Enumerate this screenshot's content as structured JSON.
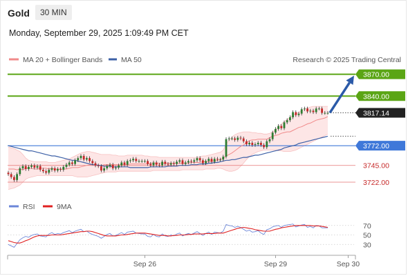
{
  "header": {
    "symbol": "Gold",
    "timeframe": "30 MIN",
    "datetime": "Monday, September 29, 2025 1:09:49 PM CET"
  },
  "legend": {
    "ma20_label": "MA 20 + Bollinger Bands",
    "ma50_label": "MA 50",
    "source": "Research © 2025 Trading Central",
    "rsi_label": "RSI",
    "rsi_ma_label": "9MA"
  },
  "colors": {
    "bull": "#2e7d32",
    "bear": "#c62828",
    "ma20": "#f08a8a",
    "ma50": "#3b5fa6",
    "band_fill": "#fde3e3",
    "resistance": "#5aa514",
    "pivot": "#3f78d9",
    "support": "#e57373",
    "last": "#222222",
    "rsi": "#6b86d8",
    "rsi_ma": "#e02020"
  },
  "chart_data": [
    {
      "type": "candlestick",
      "title": "Gold 30 MIN",
      "ylim": [
        3705,
        3880
      ],
      "x_ticks": [
        {
          "label": "Sep 26",
          "index": 47
        },
        {
          "label": "Sep 29",
          "index": 92
        },
        {
          "label": "Sep 30",
          "index": 117
        }
      ],
      "levels": [
        {
          "label": "3870.00",
          "value": 3870.0,
          "kind": "resistance"
        },
        {
          "label": "3840.00",
          "value": 3840.0,
          "kind": "resistance"
        },
        {
          "label": "3817.14",
          "value": 3817.14,
          "kind": "last"
        },
        {
          "label": "3772.00",
          "value": 3772.0,
          "kind": "pivot"
        },
        {
          "label": "3745.00",
          "value": 3745.0,
          "kind": "support"
        },
        {
          "label": "3722.00",
          "value": 3722.0,
          "kind": "support"
        }
      ],
      "forecast_arrow": {
        "from_value": 3817.14,
        "to_value": 3868.0
      },
      "close": [
        3733,
        3729,
        3725,
        3733,
        3741,
        3744,
        3740,
        3743,
        3745,
        3742,
        3744,
        3739,
        3737,
        3735,
        3739,
        3741,
        3738,
        3740,
        3739,
        3743,
        3746,
        3749,
        3747,
        3752,
        3755,
        3758,
        3753,
        3755,
        3751,
        3748,
        3745,
        3744,
        3738,
        3741,
        3744,
        3746,
        3741,
        3742,
        3745,
        3749,
        3746,
        3751,
        3752,
        3754,
        3751,
        3751,
        3751,
        3751,
        3747,
        3745,
        3749,
        3746,
        3745,
        3750,
        3747,
        3746,
        3748,
        3747,
        3750,
        3752,
        3747,
        3749,
        3751,
        3750,
        3752,
        3755,
        3752,
        3748,
        3751,
        3754,
        3750,
        3754,
        3753,
        3753,
        3757,
        3781,
        3782,
        3782,
        3780,
        3783,
        3782,
        3778,
        3774,
        3776,
        3773,
        3774,
        3776,
        3773,
        3770,
        3778,
        3781,
        3790,
        3795,
        3799,
        3796,
        3804,
        3807,
        3811,
        3818,
        3814,
        3816,
        3822,
        3823,
        3819,
        3820,
        3818,
        3823,
        3823,
        3817,
        3817,
        3817
      ],
      "ma20": [
        3740,
        3740,
        3740,
        3739,
        3740,
        3739,
        3741,
        3741,
        3741,
        3740,
        3740,
        3741,
        3741,
        3741,
        3740,
        3741,
        3740,
        3740,
        3740,
        3740,
        3740,
        3741,
        3742,
        3742,
        3742,
        3743,
        3744,
        3745,
        3746,
        3746,
        3746,
        3745,
        3745,
        3746,
        3746,
        3746,
        3746,
        3746,
        3746,
        3746,
        3746,
        3746,
        3747,
        3747,
        3747,
        3747,
        3747,
        3747,
        3747,
        3748,
        3748,
        3748,
        3748,
        3748,
        3748,
        3748,
        3748,
        3748,
        3748,
        3748,
        3748,
        3748,
        3748,
        3749,
        3749,
        3749,
        3749,
        3750,
        3750,
        3750,
        3751,
        3751,
        3752,
        3753,
        3755,
        3758,
        3760,
        3762,
        3765,
        3768,
        3771,
        3773,
        3776,
        3779,
        3780,
        3780,
        3781,
        3781,
        3781,
        3781,
        3783,
        3785,
        3786,
        3787,
        3789,
        3790,
        3791,
        3791,
        3793,
        3795,
        3797,
        3798,
        3800,
        3802,
        3803,
        3805,
        3807,
        3808,
        3809,
        3810,
        3812
      ],
      "ma50": [
        3772,
        3771,
        3770,
        3769,
        3768,
        3767,
        3766,
        3765,
        3765,
        3764,
        3763,
        3762,
        3761,
        3760,
        3759,
        3758,
        3758,
        3757,
        3756,
        3755,
        3754,
        3753,
        3752,
        3752,
        3751,
        3750,
        3749,
        3748,
        3747,
        3746,
        3746,
        3745,
        3745,
        3744,
        3744,
        3744,
        3743,
        3743,
        3743,
        3743,
        3743,
        3743,
        3742,
        3742,
        3742,
        3742,
        3742,
        3742,
        3742,
        3743,
        3743,
        3743,
        3743,
        3743,
        3743,
        3744,
        3744,
        3744,
        3744,
        3745,
        3745,
        3745,
        3745,
        3746,
        3746,
        3746,
        3747,
        3747,
        3747,
        3748,
        3748,
        3749,
        3749,
        3750,
        3751,
        3752,
        3752,
        3753,
        3753,
        3754,
        3755,
        3756,
        3756,
        3757,
        3758,
        3759,
        3759,
        3760,
        3761,
        3762,
        3763,
        3764,
        3765,
        3766,
        3767,
        3769,
        3770,
        3771,
        3772,
        3773,
        3775,
        3776,
        3777,
        3778,
        3779,
        3780,
        3781,
        3782,
        3783,
        3784,
        3785
      ],
      "bb_upper": [
        3770,
        3769,
        3768,
        3766,
        3764,
        3760,
        3755,
        3752,
        3751,
        3750,
        3750,
        3750,
        3750,
        3750,
        3749,
        3749,
        3749,
        3750,
        3751,
        3752,
        3753,
        3754,
        3756,
        3758,
        3760,
        3762,
        3763,
        3764,
        3764,
        3763,
        3762,
        3761,
        3760,
        3760,
        3760,
        3760,
        3759,
        3759,
        3758,
        3758,
        3758,
        3759,
        3759,
        3759,
        3759,
        3759,
        3759,
        3758,
        3758,
        3757,
        3757,
        3757,
        3756,
        3756,
        3756,
        3756,
        3756,
        3756,
        3756,
        3756,
        3756,
        3756,
        3756,
        3756,
        3756,
        3756,
        3757,
        3758,
        3758,
        3759,
        3760,
        3761,
        3762,
        3763,
        3766,
        3774,
        3780,
        3784,
        3787,
        3789,
        3790,
        3791,
        3791,
        3791,
        3790,
        3790,
        3789,
        3789,
        3788,
        3788,
        3789,
        3791,
        3794,
        3798,
        3802,
        3805,
        3808,
        3811,
        3814,
        3816,
        3818,
        3820,
        3822,
        3824,
        3825,
        3826,
        3826,
        3826,
        3826,
        3826,
        3826
      ],
      "bb_lower": [
        3712,
        3713,
        3714,
        3716,
        3718,
        3722,
        3726,
        3728,
        3729,
        3730,
        3731,
        3731,
        3731,
        3731,
        3731,
        3731,
        3731,
        3731,
        3731,
        3731,
        3731,
        3731,
        3731,
        3730,
        3729,
        3729,
        3729,
        3729,
        3730,
        3731,
        3732,
        3733,
        3734,
        3735,
        3736,
        3736,
        3736,
        3736,
        3737,
        3737,
        3737,
        3737,
        3737,
        3737,
        3737,
        3737,
        3737,
        3737,
        3737,
        3737,
        3738,
        3738,
        3738,
        3738,
        3738,
        3738,
        3738,
        3738,
        3738,
        3738,
        3739,
        3739,
        3739,
        3739,
        3739,
        3739,
        3739,
        3739,
        3740,
        3740,
        3740,
        3740,
        3741,
        3741,
        3740,
        3738,
        3737,
        3737,
        3738,
        3740,
        3744,
        3748,
        3753,
        3757,
        3760,
        3762,
        3764,
        3765,
        3766,
        3766,
        3766,
        3766,
        3766,
        3765,
        3765,
        3764,
        3764,
        3764,
        3765,
        3766,
        3768,
        3770,
        3772,
        3774,
        3776,
        3778,
        3780,
        3782,
        3784,
        3786,
        3788
      ]
    },
    {
      "type": "line",
      "title": "RSI",
      "ylim": [
        10,
        90
      ],
      "y_ticks": [
        70,
        50,
        30
      ],
      "series": [
        {
          "name": "RSI",
          "values": [
            30,
            27,
            24,
            32,
            40,
            44,
            47,
            45,
            49,
            51,
            52,
            48,
            47,
            46,
            52,
            55,
            51,
            53,
            52,
            55,
            57,
            59,
            55,
            58,
            60,
            62,
            57,
            58,
            54,
            51,
            49,
            47,
            43,
            47,
            51,
            53,
            48,
            49,
            52,
            55,
            51,
            56,
            57,
            58,
            54,
            53,
            52,
            52,
            47,
            46,
            51,
            47,
            46,
            52,
            48,
            47,
            50,
            48,
            52,
            54,
            48,
            51,
            53,
            51,
            54,
            57,
            53,
            49,
            53,
            56,
            51,
            56,
            55,
            54,
            58,
            72,
            70,
            69,
            66,
            68,
            66,
            62,
            58,
            60,
            56,
            57,
            59,
            54,
            51,
            61,
            63,
            67,
            69,
            70,
            66,
            70,
            71,
            72,
            73,
            67,
            69,
            71,
            72,
            66,
            68,
            65,
            70,
            69,
            65,
            65,
            65
          ]
        },
        {
          "name": "9MA",
          "values": [
            38,
            36,
            34,
            33,
            33,
            35,
            38,
            40,
            43,
            46,
            48,
            49,
            49,
            49,
            49,
            50,
            50,
            50,
            50,
            51,
            52,
            53,
            54,
            55,
            56,
            57,
            57,
            58,
            58,
            57,
            55,
            53,
            51,
            49,
            48,
            48,
            48,
            48,
            49,
            50,
            50,
            51,
            52,
            53,
            54,
            54,
            54,
            54,
            53,
            52,
            51,
            50,
            49,
            49,
            49,
            48,
            48,
            49,
            49,
            50,
            50,
            50,
            51,
            51,
            52,
            52,
            52,
            52,
            53,
            53,
            53,
            53,
            54,
            54,
            54,
            56,
            58,
            60,
            62,
            64,
            65,
            66,
            65,
            64,
            63,
            61,
            60,
            59,
            58,
            58,
            58,
            60,
            62,
            63,
            65,
            66,
            67,
            68,
            69,
            70,
            70,
            70,
            70,
            70,
            70,
            69,
            69,
            69,
            68,
            67,
            66
          ]
        }
      ]
    }
  ]
}
